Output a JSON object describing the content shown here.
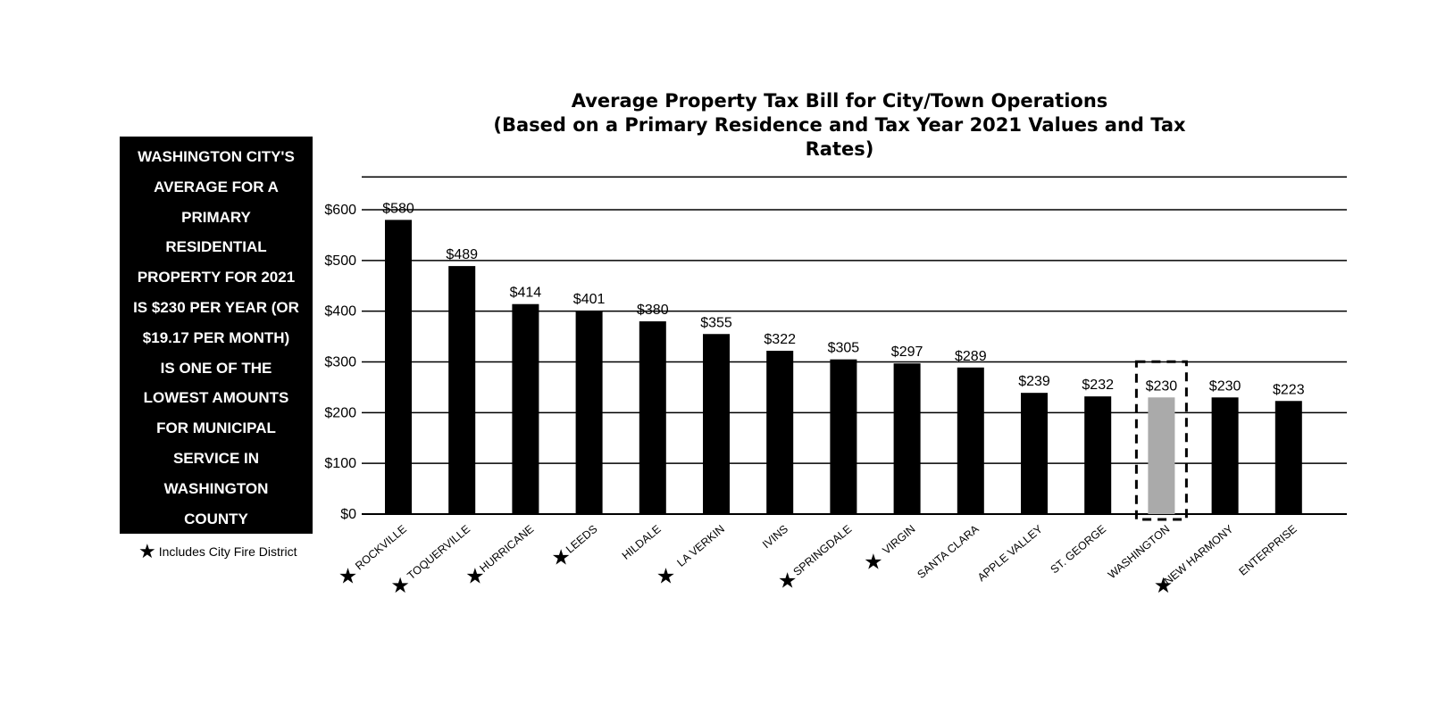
{
  "chart_data": {
    "type": "bar",
    "title_line1": "Average Property Tax Bill for City/Town Operations",
    "title_line2": "(Based on a Primary Residence and Tax Year 2021 Values and Tax Rates)",
    "categories": [
      "ROCKVILLE",
      "TOQUERVILLE",
      "HURRICANE",
      "LEEDS",
      "HILDALE",
      "LA VERKIN",
      "IVINS",
      "SPRINGDALE",
      "VIRGIN",
      "SANTA CLARA",
      "APPLE VALLEY",
      "ST. GEORGE",
      "WASHINGTON",
      "NEW HARMONY",
      "ENTERPRISE"
    ],
    "values": [
      580,
      489,
      414,
      401,
      380,
      355,
      322,
      305,
      297,
      289,
      239,
      232,
      230,
      230,
      223
    ],
    "value_labels": [
      "$580",
      "$489",
      "$414",
      "$401",
      "$380",
      "$355",
      "$322",
      "$305",
      "$297",
      "$289",
      "$239",
      "$232",
      "$230",
      "$230",
      "$223"
    ],
    "fire_district": [
      true,
      true,
      true,
      true,
      false,
      true,
      false,
      true,
      true,
      false,
      false,
      false,
      false,
      true,
      false
    ],
    "highlight": "WASHINGTON",
    "ylim": [
      0,
      700
    ],
    "yticks": [
      0,
      100,
      200,
      300,
      400,
      500,
      600
    ],
    "ytick_labels": [
      "$0",
      "$100",
      "$200",
      "$300",
      "$400",
      "$500",
      "$600"
    ],
    "grid": true,
    "bar_color": "#000000",
    "highlight_color": "#aaaaaa"
  },
  "callout": {
    "lines": [
      "WASHINGTON CITY'S",
      "AVERAGE FOR A",
      "PRIMARY",
      "RESIDENTIAL",
      "PROPERTY FOR 2021",
      "IS $230 PER YEAR (OR",
      "$19.17 PER MONTH)",
      "IS ONE OF THE",
      "LOWEST AMOUNTS",
      "FOR MUNICIPAL",
      "SERVICE IN",
      "WASHINGTON",
      "COUNTY"
    ]
  },
  "legend": {
    "icon": "star-icon",
    "label": "Includes City Fire District"
  }
}
